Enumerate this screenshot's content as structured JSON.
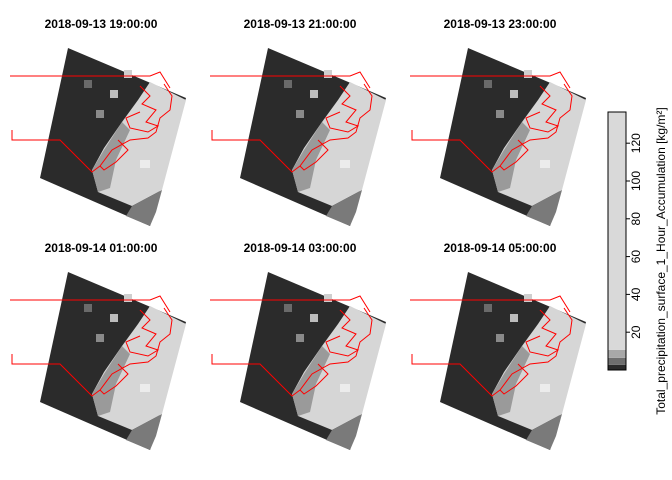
{
  "panels": [
    {
      "title": "2018-09-13 19:00:00"
    },
    {
      "title": "2018-09-13 21:00:00"
    },
    {
      "title": "2018-09-13 23:00:00"
    },
    {
      "title": "2018-09-14 01:00:00"
    },
    {
      "title": "2018-09-14 03:00:00"
    },
    {
      "title": "2018-09-14 05:00:00"
    }
  ],
  "legend": {
    "title": "Total_precipitation_surface_1_Hour_Accumulation [kg/m²]",
    "ylim": [
      0,
      136.5
    ],
    "yticks": [
      20,
      40,
      60,
      80,
      100,
      120
    ],
    "breaks": [
      0,
      2.7,
      6.4,
      10.6,
      136.5
    ],
    "colors": [
      "#2b2b2b",
      "#6e6e6e",
      "#a8a8a8",
      "#d9d9d9"
    ]
  }
}
